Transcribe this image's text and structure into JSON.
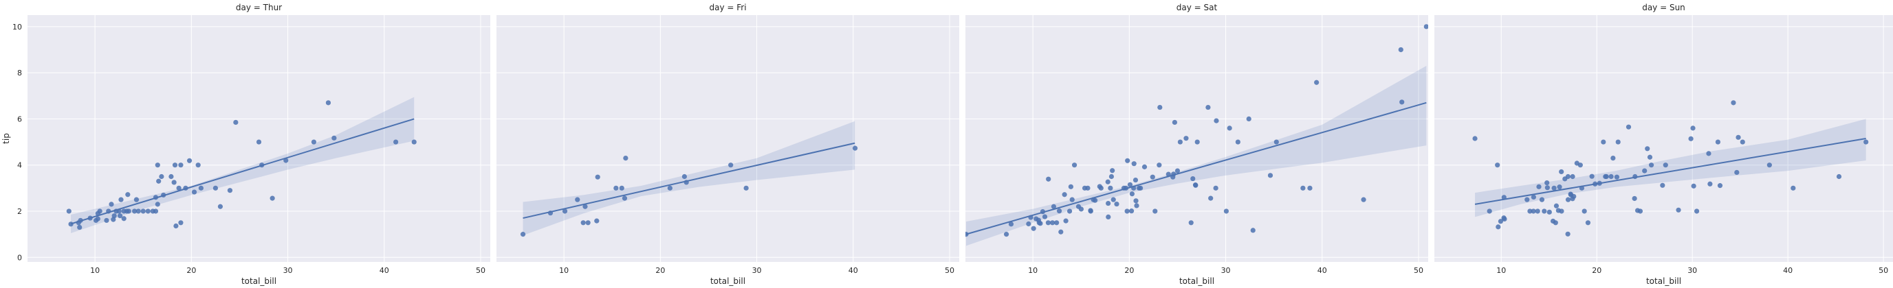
{
  "chart_data": {
    "type": "scatter",
    "title": "",
    "xlabel": "total_bill",
    "ylabel": "tip",
    "xlim": [
      3,
      51
    ],
    "ylim": [
      -0.2,
      10.5
    ],
    "xticks": [
      10,
      20,
      30,
      40,
      50
    ],
    "yticks": [
      0,
      2,
      4,
      6,
      8,
      10
    ],
    "grid": true,
    "colors": {
      "point": "#4c72b0",
      "line": "#4c72b0",
      "band": "#4c72b0",
      "bg": "#eaeaf2",
      "grid": "#ffffff"
    },
    "facets": [
      {
        "name": "day = Thur",
        "line": {
          "x": [
            7.5,
            43.1
          ],
          "y": [
            1.45,
            6.0
          ]
        },
        "band": {
          "x": [
            7.5,
            15,
            20,
            25,
            30,
            35,
            43.1
          ],
          "lower": [
            1.05,
            2.1,
            2.7,
            3.25,
            3.8,
            4.3,
            5.05
          ],
          "upper": [
            1.85,
            2.6,
            3.1,
            3.8,
            4.5,
            5.3,
            6.95
          ]
        },
        "points": [
          [
            7.3,
            2.0
          ],
          [
            7.5,
            1.44
          ],
          [
            8.3,
            1.5
          ],
          [
            8.4,
            1.3
          ],
          [
            8.5,
            1.6
          ],
          [
            9.5,
            1.7
          ],
          [
            10.1,
            1.6
          ],
          [
            10.3,
            1.67
          ],
          [
            10.5,
            2.0
          ],
          [
            10.3,
            1.9
          ],
          [
            11.2,
            1.6
          ],
          [
            11.4,
            2.0
          ],
          [
            11.7,
            2.3
          ],
          [
            11.9,
            1.64
          ],
          [
            12.0,
            1.8
          ],
          [
            12.2,
            2.0
          ],
          [
            12.5,
            2.0
          ],
          [
            12.6,
            1.8
          ],
          [
            12.7,
            2.5
          ],
          [
            13.0,
            2.0
          ],
          [
            13.3,
            2.0
          ],
          [
            13.4,
            2.72
          ],
          [
            13.0,
            1.68
          ],
          [
            13.5,
            2.0
          ],
          [
            14.1,
            2.0
          ],
          [
            14.5,
            2.0
          ],
          [
            14.3,
            2.5
          ],
          [
            15.0,
            2.0
          ],
          [
            15.5,
            2.0
          ],
          [
            16.0,
            2.0
          ],
          [
            16.3,
            2.0
          ],
          [
            16.5,
            2.3
          ],
          [
            16.3,
            2.6
          ],
          [
            16.6,
            3.3
          ],
          [
            16.5,
            4.0
          ],
          [
            16.9,
            3.5
          ],
          [
            17.1,
            2.7
          ],
          [
            17.9,
            3.5
          ],
          [
            18.2,
            3.25
          ],
          [
            18.3,
            4.0
          ],
          [
            18.4,
            1.36
          ],
          [
            18.7,
            3.0
          ],
          [
            18.9,
            4.0
          ],
          [
            18.9,
            1.5
          ],
          [
            19.4,
            3.0
          ],
          [
            19.8,
            4.19
          ],
          [
            20.3,
            2.83
          ],
          [
            20.7,
            4.0
          ],
          [
            21.0,
            3.0
          ],
          [
            22.5,
            3.0
          ],
          [
            23.0,
            2.2
          ],
          [
            24.0,
            2.9
          ],
          [
            24.6,
            5.85
          ],
          [
            27.0,
            5.0
          ],
          [
            27.3,
            4.0
          ],
          [
            28.4,
            2.56
          ],
          [
            29.8,
            4.2
          ],
          [
            32.7,
            5.0
          ],
          [
            34.2,
            6.7
          ],
          [
            34.8,
            5.17
          ],
          [
            41.2,
            5.0
          ],
          [
            43.1,
            5.0
          ]
        ]
      },
      {
        "name": "day = Fri",
        "line": {
          "x": [
            5.75,
            40.17
          ],
          "y": [
            1.7,
            4.95
          ]
        },
        "band": {
          "x": [
            5.75,
            12,
            18,
            24,
            30,
            40.17
          ],
          "lower": [
            0.95,
            1.9,
            2.65,
            3.05,
            3.35,
            3.8
          ],
          "upper": [
            2.4,
            2.7,
            3.1,
            3.7,
            4.3,
            5.9
          ]
        },
        "points": [
          [
            5.75,
            1.0
          ],
          [
            8.6,
            1.92
          ],
          [
            10.1,
            2.0
          ],
          [
            11.4,
            2.5
          ],
          [
            12.0,
            1.5
          ],
          [
            12.2,
            2.2
          ],
          [
            12.5,
            1.5
          ],
          [
            13.4,
            1.58
          ],
          [
            13.5,
            3.48
          ],
          [
            15.4,
            3.0
          ],
          [
            16.0,
            3.0
          ],
          [
            16.3,
            2.56
          ],
          [
            16.4,
            4.3
          ],
          [
            21.0,
            3.0
          ],
          [
            22.5,
            3.5
          ],
          [
            22.7,
            3.25
          ],
          [
            27.3,
            4.0
          ],
          [
            28.9,
            3.0
          ],
          [
            40.2,
            4.73
          ]
        ]
      },
      {
        "name": "day = Sat",
        "line": {
          "x": [
            3.07,
            50.81
          ],
          "y": [
            1.0,
            6.7
          ]
        },
        "band": {
          "x": [
            3.07,
            10,
            15,
            20,
            25,
            30,
            40,
            50.81
          ],
          "lower": [
            0.5,
            1.5,
            2.2,
            2.8,
            3.2,
            3.55,
            4.1,
            4.85
          ],
          "upper": [
            1.55,
            2.1,
            2.6,
            3.1,
            3.7,
            4.35,
            5.75,
            8.3
          ]
        },
        "points": [
          [
            3.07,
            1.0
          ],
          [
            7.25,
            1.0
          ],
          [
            7.74,
            1.44
          ],
          [
            9.55,
            1.45
          ],
          [
            9.78,
            1.73
          ],
          [
            10.07,
            1.25
          ],
          [
            10.33,
            1.67
          ],
          [
            10.59,
            1.61
          ],
          [
            10.65,
            1.5
          ],
          [
            10.77,
            1.47
          ],
          [
            11.02,
            1.98
          ],
          [
            11.24,
            1.76
          ],
          [
            11.59,
            1.5
          ],
          [
            11.61,
            3.39
          ],
          [
            12.03,
            1.5
          ],
          [
            12.16,
            2.2
          ],
          [
            12.46,
            1.5
          ],
          [
            12.74,
            2.01
          ],
          [
            12.9,
            1.1
          ],
          [
            13.28,
            2.72
          ],
          [
            13.42,
            1.58
          ],
          [
            13.81,
            2.0
          ],
          [
            13.94,
            3.06
          ],
          [
            14.07,
            2.5
          ],
          [
            14.31,
            4.0
          ],
          [
            14.73,
            2.2
          ],
          [
            15.01,
            2.09
          ],
          [
            15.38,
            3.0
          ],
          [
            15.69,
            3.0
          ],
          [
            15.98,
            2.03
          ],
          [
            16.0,
            2.0
          ],
          [
            16.27,
            2.5
          ],
          [
            16.45,
            2.47
          ],
          [
            16.93,
            3.07
          ],
          [
            17.07,
            3.0
          ],
          [
            17.78,
            3.27
          ],
          [
            17.81,
            2.34
          ],
          [
            17.82,
            1.75
          ],
          [
            18.04,
            3.0
          ],
          [
            18.15,
            3.5
          ],
          [
            18.24,
            3.76
          ],
          [
            18.35,
            2.5
          ],
          [
            18.69,
            2.31
          ],
          [
            19.44,
            3.0
          ],
          [
            19.65,
            3.0
          ],
          [
            19.77,
            2.0
          ],
          [
            19.81,
            4.19
          ],
          [
            20.08,
            3.15
          ],
          [
            20.23,
            2.01
          ],
          [
            20.29,
            2.75
          ],
          [
            20.45,
            3.0
          ],
          [
            20.49,
            4.06
          ],
          [
            20.65,
            3.35
          ],
          [
            20.69,
            2.45
          ],
          [
            20.76,
            2.24
          ],
          [
            21.01,
            3.0
          ],
          [
            21.16,
            3.0
          ],
          [
            21.58,
            3.92
          ],
          [
            22.42,
            3.48
          ],
          [
            22.67,
            2.0
          ],
          [
            23.1,
            4.0
          ],
          [
            23.17,
            6.5
          ],
          [
            24.06,
            3.6
          ],
          [
            24.52,
            3.48
          ],
          [
            24.59,
            3.61
          ],
          [
            24.71,
            5.85
          ],
          [
            25.0,
            3.75
          ],
          [
            25.28,
            5.0
          ],
          [
            25.89,
            5.16
          ],
          [
            26.41,
            1.5
          ],
          [
            26.59,
            3.41
          ],
          [
            26.86,
            3.14
          ],
          [
            26.88,
            3.12
          ],
          [
            27.05,
            5.0
          ],
          [
            28.17,
            6.5
          ],
          [
            28.44,
            2.56
          ],
          [
            28.97,
            3.0
          ],
          [
            29.03,
            5.92
          ],
          [
            30.06,
            2.0
          ],
          [
            30.4,
            5.6
          ],
          [
            31.27,
            5.0
          ],
          [
            32.4,
            6.0
          ],
          [
            32.83,
            1.17
          ],
          [
            34.63,
            3.55
          ],
          [
            35.26,
            5.0
          ],
          [
            38.01,
            3.0
          ],
          [
            39.42,
            7.58
          ],
          [
            38.73,
            3.0
          ],
          [
            44.3,
            2.5
          ],
          [
            48.27,
            6.73
          ],
          [
            48.17,
            9.0
          ],
          [
            50.81,
            10.0
          ]
        ]
      },
      {
        "name": "day = Sun",
        "line": {
          "x": [
            7.25,
            48.17
          ],
          "y": [
            2.3,
            5.15
          ]
        },
        "band": {
          "x": [
            7.25,
            12,
            17,
            22,
            27,
            32,
            40,
            48.17
          ],
          "lower": [
            1.75,
            2.3,
            2.75,
            3.05,
            3.25,
            3.45,
            3.75,
            4.2
          ],
          "upper": [
            2.8,
            3.1,
            3.4,
            3.75,
            4.2,
            4.6,
            5.1,
            6.0
          ]
        },
        "points": [
          [
            7.25,
            5.15
          ],
          [
            8.77,
            2.0
          ],
          [
            9.6,
            4.0
          ],
          [
            9.68,
            1.32
          ],
          [
            9.94,
            1.56
          ],
          [
            10.27,
            1.71
          ],
          [
            10.34,
            1.66
          ],
          [
            10.29,
            2.6
          ],
          [
            13.0,
            2.0
          ],
          [
            13.37,
            2.0
          ],
          [
            13.39,
            2.61
          ],
          [
            13.81,
            2.0
          ],
          [
            13.94,
            3.06
          ],
          [
            14.26,
            2.5
          ],
          [
            14.78,
            3.23
          ],
          [
            14.83,
            3.02
          ],
          [
            15.04,
            1.96
          ],
          [
            15.42,
            1.57
          ],
          [
            15.53,
            3.0
          ],
          [
            15.69,
            1.5
          ],
          [
            15.77,
            2.23
          ],
          [
            15.98,
            2.03
          ],
          [
            16.29,
            3.71
          ],
          [
            16.31,
            2.0
          ],
          [
            16.66,
            3.4
          ],
          [
            16.97,
            1.01
          ],
          [
            16.99,
            3.5
          ],
          [
            17.26,
            2.74
          ],
          [
            17.29,
            2.71
          ],
          [
            17.46,
            2.54
          ],
          [
            17.47,
            3.5
          ],
          [
            17.59,
            2.64
          ],
          [
            17.92,
            4.08
          ],
          [
            18.28,
            4.0
          ],
          [
            18.43,
            3.0
          ],
          [
            19.08,
            1.5
          ],
          [
            19.49,
            3.51
          ],
          [
            19.82,
            3.18
          ],
          [
            20.29,
            3.21
          ],
          [
            20.69,
            5.0
          ],
          [
            21.01,
            3.5
          ],
          [
            21.5,
            3.5
          ],
          [
            21.7,
            4.3
          ],
          [
            22.23,
            5.0
          ],
          [
            23.33,
            5.65
          ],
          [
            23.95,
            2.55
          ],
          [
            24.27,
            2.03
          ],
          [
            24.55,
            2.0
          ],
          [
            25.0,
            3.75
          ],
          [
            25.29,
            4.71
          ],
          [
            25.56,
            4.34
          ],
          [
            25.71,
            4.0
          ],
          [
            26.88,
            3.12
          ],
          [
            28.55,
            2.05
          ],
          [
            29.85,
            5.14
          ],
          [
            30.14,
            3.09
          ],
          [
            30.46,
            2.0
          ],
          [
            31.71,
            4.5
          ],
          [
            31.85,
            3.18
          ],
          [
            32.68,
            5.0
          ],
          [
            32.9,
            3.11
          ],
          [
            34.65,
            3.68
          ],
          [
            34.81,
            5.2
          ],
          [
            35.26,
            5.0
          ],
          [
            34.3,
            6.7
          ],
          [
            38.07,
            4.0
          ],
          [
            40.55,
            3.0
          ],
          [
            45.35,
            3.5
          ],
          [
            48.17,
            5.0
          ],
          [
            30.06,
            5.6
          ],
          [
            27.2,
            4.0
          ],
          [
            24.0,
            3.5
          ],
          [
            22.1,
            3.48
          ],
          [
            20.9,
            3.5
          ],
          [
            18.7,
            2.0
          ],
          [
            17.0,
            2.5
          ],
          [
            12.7,
            2.5
          ],
          [
            14.5,
            2.0
          ],
          [
            16.1,
            3.05
          ]
        ]
      }
    ]
  }
}
